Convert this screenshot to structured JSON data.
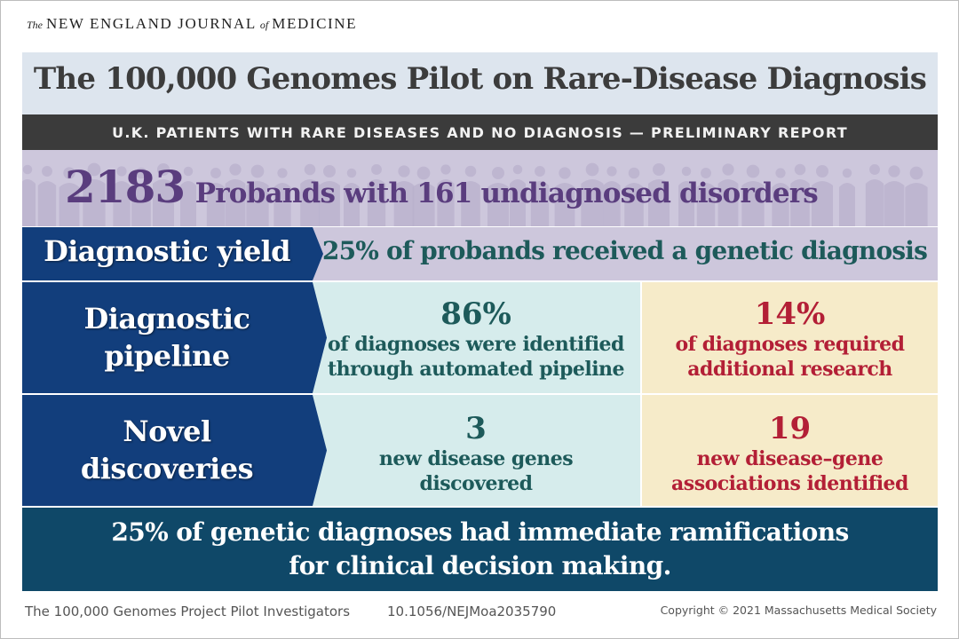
{
  "journal": {
    "the": "The",
    "name_part1": "NEW ENGLAND JOURNAL",
    "of": "of",
    "name_part2": "MEDICINE"
  },
  "title": "The 100,000 Genomes Pilot on Rare-Disease Diagnosis",
  "subtitle": "U.K. PATIENTS WITH RARE DISEASES AND NO DIAGNOSIS — PRELIMINARY REPORT",
  "probands": {
    "number": "2183",
    "text": "Probands with 161 undiagnosed disorders"
  },
  "rows": {
    "yield": {
      "label": "Diagnostic yield",
      "text": "25% of probands received a genetic diagnosis"
    },
    "pipeline": {
      "label_line1": "Diagnostic",
      "label_line2": "pipeline",
      "left": {
        "value": "86%",
        "line1": "of diagnoses were identified",
        "line2": "through automated pipeline"
      },
      "right": {
        "value": "14%",
        "line1": "of diagnoses required",
        "line2": "additional research"
      }
    },
    "novel": {
      "label_line1": "Novel",
      "label_line2": "discoveries",
      "left": {
        "value": "3",
        "line1": "new disease genes",
        "line2": "discovered"
      },
      "right": {
        "value": "19",
        "line1": "new disease–gene",
        "line2": "associations identified"
      }
    }
  },
  "footer": {
    "line1": "25% of genetic diagnoses had immediate ramifications",
    "line2": "for clinical decision making."
  },
  "credit": {
    "authors": "The 100,000 Genomes Project Pilot Investigators",
    "doi": "10.1056/NEJMoa2035790",
    "copyright": "Copyright © 2021 Massachusetts Medical Society"
  },
  "colors": {
    "title_band": "#dde5ee",
    "subtitle_band": "#3b3b3b",
    "probands_band": "#cdc7dc",
    "probands_text": "#5a3d7e",
    "label_blue": "#123e7c",
    "teal_cell": "#d6ecec",
    "teal_text": "#1d5a5a",
    "cream_cell": "#f6ebc9",
    "red_text": "#b31f36",
    "footer_band": "#0f4868"
  }
}
